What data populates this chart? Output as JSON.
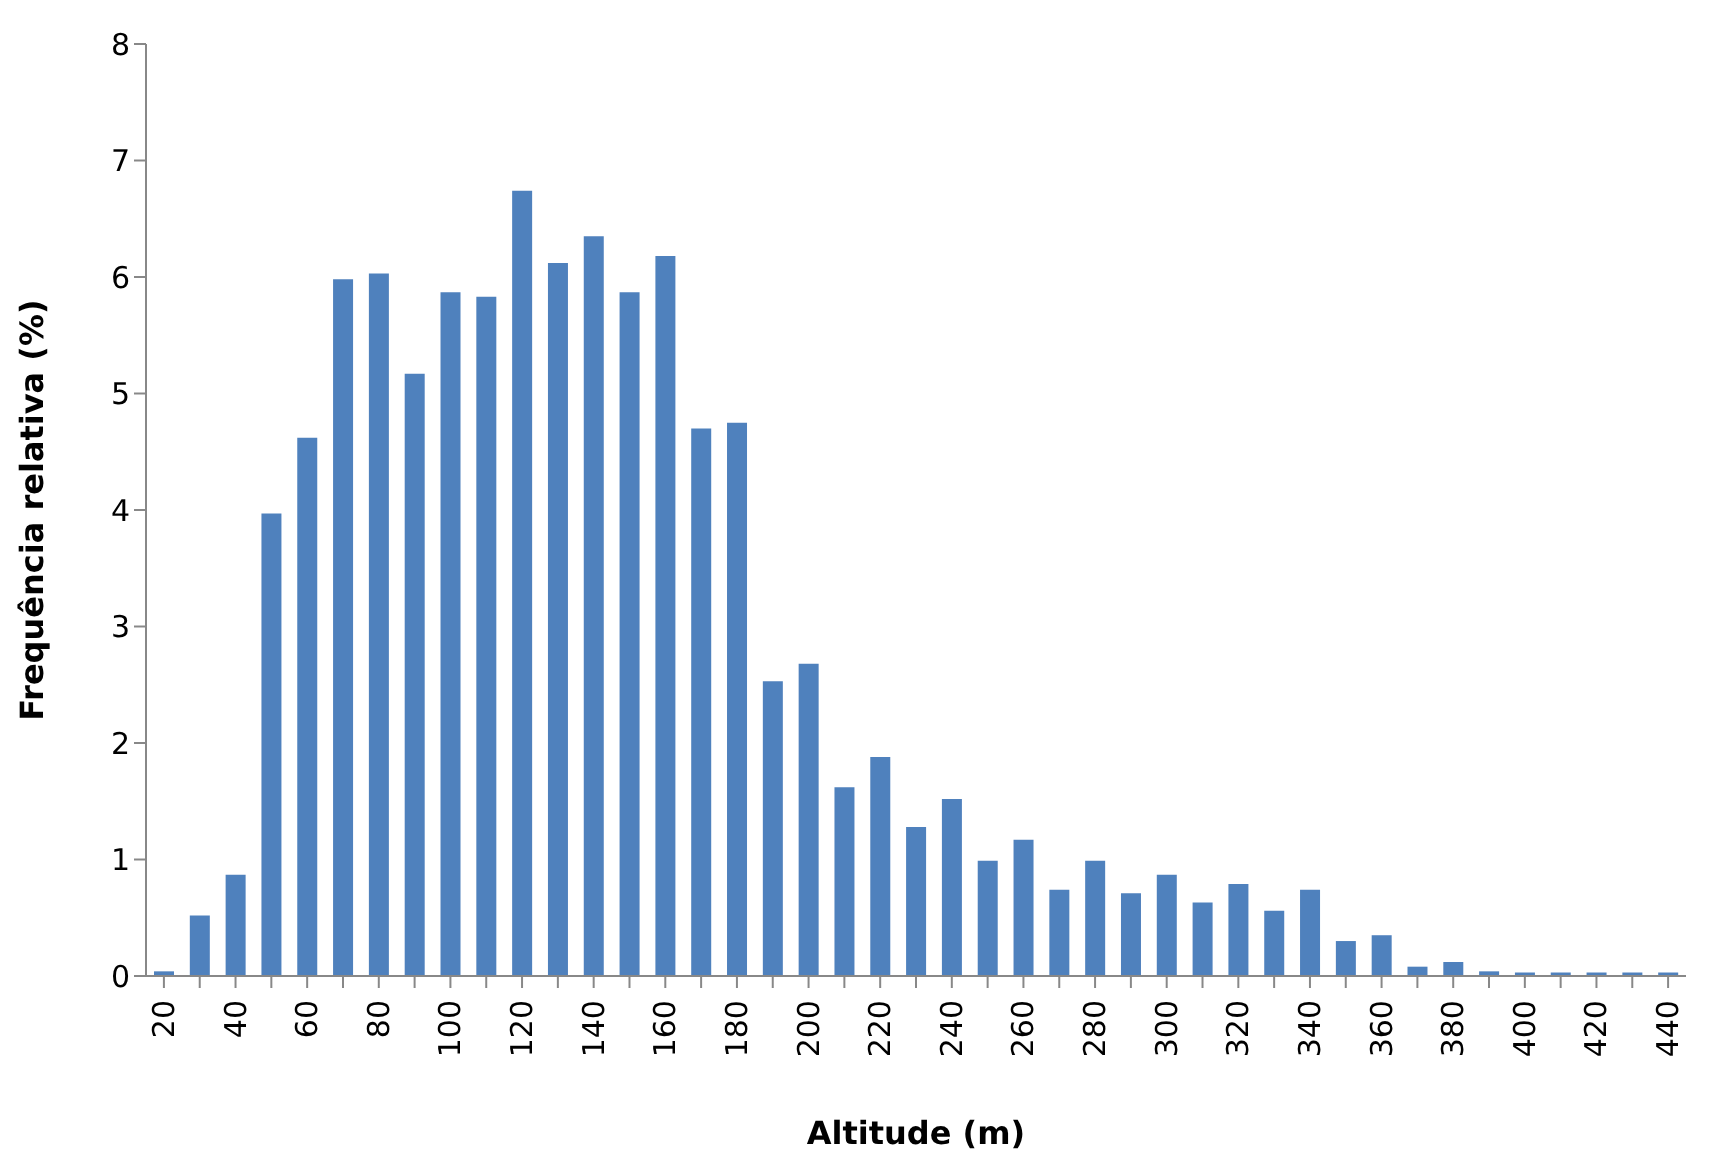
{
  "chart_data": {
    "type": "bar",
    "xlabel": "Altitude (m)",
    "ylabel": "Frequência relativa (%)",
    "categories": [
      "20",
      null,
      "40",
      null,
      "60",
      null,
      "80",
      null,
      "100",
      null,
      "120",
      null,
      "140",
      null,
      "160",
      null,
      "180",
      null,
      "200",
      null,
      "220",
      null,
      "240",
      null,
      "260",
      null,
      "280",
      null,
      "300",
      null,
      "320",
      null,
      "340",
      null,
      "360",
      null,
      "380",
      null,
      "400",
      null,
      "420",
      null,
      "440"
    ],
    "values": [
      0.04,
      0.52,
      0.87,
      3.97,
      4.62,
      5.98,
      6.03,
      5.17,
      5.87,
      5.83,
      6.74,
      6.12,
      6.35,
      5.87,
      6.18,
      4.7,
      4.75,
      2.53,
      2.68,
      1.62,
      1.88,
      1.28,
      1.52,
      0.99,
      1.17,
      0.74,
      0.99,
      0.71,
      0.87,
      0.63,
      0.79,
      0.56,
      0.74,
      0.3,
      0.35,
      0.08,
      0.12,
      0.04,
      0.03,
      0.03,
      0.03,
      0.03,
      0.03
    ],
    "color": "#4f81bd",
    "ylim": [
      0,
      8
    ],
    "yticks": [
      0,
      1,
      2,
      3,
      4,
      5,
      6,
      7,
      8
    ],
    "grid": false,
    "legend": false
  }
}
